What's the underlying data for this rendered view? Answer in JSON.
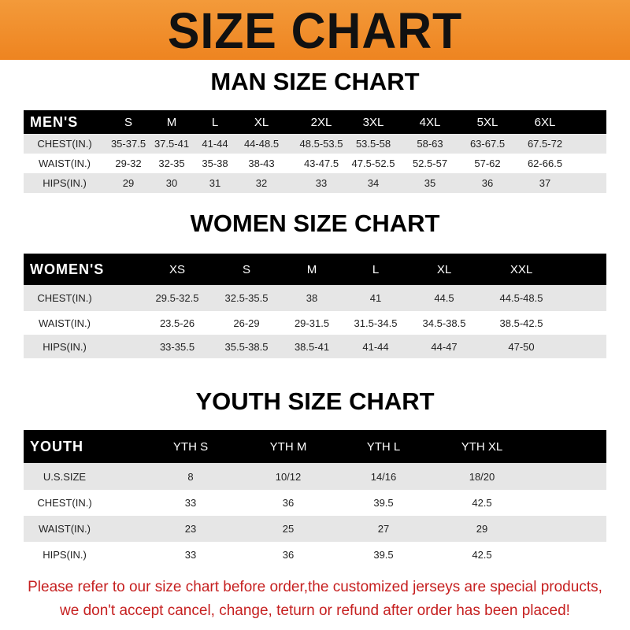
{
  "banner": {
    "title": "SIZE CHART",
    "color": "#EE8420"
  },
  "men": {
    "title": "MAN SIZE CHART",
    "header": [
      "MEN'S",
      "S",
      "M",
      "L",
      "XL",
      "2XL",
      "3XL",
      "4XL",
      "5XL",
      "6XL"
    ],
    "rows": [
      [
        "CHEST(IN.)",
        "35-37.5",
        "37.5-41",
        "41-44",
        "44-48.5",
        "48.5-53.5",
        "53.5-58",
        "58-63",
        "63-67.5",
        "67.5-72"
      ],
      [
        "WAIST(IN.)",
        "29-32",
        "32-35",
        "35-38",
        "38-43",
        "43-47.5",
        "47.5-52.5",
        "52.5-57",
        "57-62",
        "62-66.5"
      ],
      [
        "HIPS(IN.)",
        "29",
        "30",
        "31",
        "32",
        "33",
        "34",
        "35",
        "36",
        "37"
      ]
    ]
  },
  "women": {
    "title": "WOMEN SIZE CHART",
    "header": [
      "WOMEN'S",
      "XS",
      "S",
      "M",
      "L",
      "XL",
      "XXL"
    ],
    "rows": [
      [
        "CHEST(IN.)",
        "29.5-32.5",
        "32.5-35.5",
        "38",
        "41",
        "44.5",
        "44.5-48.5"
      ],
      [
        "WAIST(IN.)",
        "23.5-26",
        "26-29",
        "29-31.5",
        "31.5-34.5",
        "34.5-38.5",
        "38.5-42.5"
      ],
      [
        "HIPS(IN.)",
        "33-35.5",
        "35.5-38.5",
        "38.5-41",
        "41-44",
        "44-47",
        "47-50"
      ]
    ]
  },
  "youth": {
    "title": "YOUTH SIZE CHART",
    "header": [
      "YOUTH",
      "YTH S",
      "YTH M",
      "YTH L",
      "YTH XL"
    ],
    "rows": [
      [
        "U.S.SIZE",
        "8",
        "10/12",
        "14/16",
        "18/20"
      ],
      [
        "CHEST(IN.)",
        "33",
        "36",
        "39.5",
        "42.5"
      ],
      [
        "WAIST(IN.)",
        "23",
        "25",
        "27",
        "29"
      ],
      [
        "HIPS(IN.)",
        "33",
        "36",
        "39.5",
        "42.5"
      ]
    ]
  },
  "footer": {
    "line1": "Please refer to our size chart before order,the customized jerseys are special products,",
    "line2": "we don't accept cancel, change, teturn or refund after order has been placed!",
    "color": "#C62020"
  }
}
